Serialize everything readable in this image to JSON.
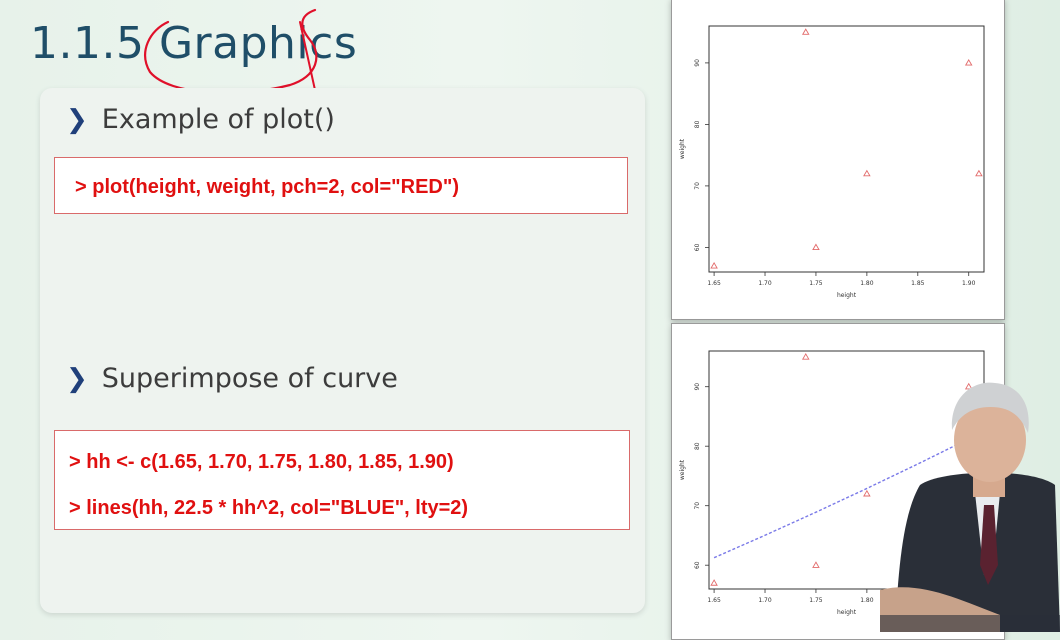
{
  "slide": {
    "title": "1.1.5 Graphics",
    "sections": [
      {
        "label": "Example of plot()",
        "code": [
          "> plot(height, weight, pch=2, col=\"RED\")"
        ]
      },
      {
        "label": "Superimpose of curve",
        "code": [
          "> hh <- c(1.65, 1.70, 1.75, 1.80, 1.85, 1.90)",
          "> lines(hh, 22.5 * hh^2, col=\"BLUE\", lty=2)"
        ]
      }
    ]
  },
  "colors": {
    "title": "#1f4e68",
    "code": "#e01010",
    "bullet_marker": "#1f3f7a",
    "points": "#e26a6a",
    "curve": "#7a7ae8",
    "annotation": "#e0102a"
  },
  "chart_data": [
    {
      "type": "scatter",
      "xlabel": "height",
      "ylabel": "weight",
      "xticks": [
        "1.65",
        "1.70",
        "1.75",
        "1.80",
        "1.85",
        "1.90"
      ],
      "yticks": [
        "60",
        "70",
        "80",
        "90"
      ],
      "xlim": [
        1.645,
        1.915
      ],
      "ylim": [
        56,
        96
      ],
      "points": [
        [
          1.65,
          57
        ],
        [
          1.74,
          95
        ],
        [
          1.75,
          60
        ],
        [
          1.8,
          72
        ],
        [
          1.9,
          90
        ],
        [
          1.91,
          72
        ]
      ]
    },
    {
      "type": "scatter",
      "xlabel": "height",
      "ylabel": "weight",
      "xticks": [
        "1.65",
        "1.70",
        "1.75",
        "1.80"
      ],
      "yticks": [
        "60",
        "70",
        "80",
        "90"
      ],
      "xlim": [
        1.645,
        1.915
      ],
      "ylim": [
        56,
        96
      ],
      "points": [
        [
          1.65,
          57
        ],
        [
          1.74,
          95
        ],
        [
          1.75,
          60
        ],
        [
          1.8,
          72
        ],
        [
          1.9,
          90
        ]
      ],
      "curve": {
        "x": [
          1.65,
          1.7,
          1.75,
          1.8,
          1.85,
          1.9
        ],
        "y": [
          61.26,
          65.03,
          68.91,
          72.9,
          77.01,
          81.23
        ]
      }
    }
  ]
}
